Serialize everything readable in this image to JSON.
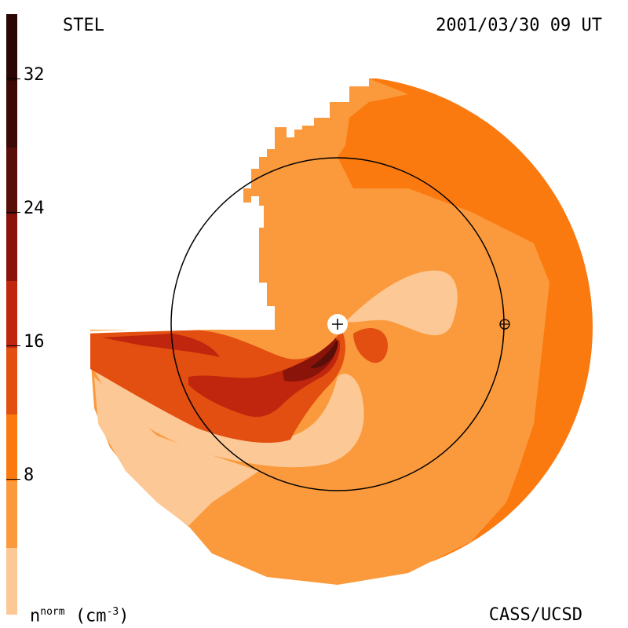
{
  "header": {
    "source_label": "STEL",
    "timestamp": "2001/03/30 09 UT"
  },
  "footer": {
    "credit": "CASS/UCSD",
    "unit_base": "n",
    "unit_sup": "norm",
    "unit_rest": "(cm",
    "unit_exp": "-3",
    "unit_close": ")"
  },
  "colorbar": {
    "tick_labels": [
      "32",
      "24",
      "16",
      "8"
    ],
    "colors": [
      "#2a0604",
      "#5a0e08",
      "#8a130a",
      "#c0260e",
      "#e24f10",
      "#fb7a10",
      "#fb9a3c",
      "#fcc896"
    ]
  },
  "map": {
    "center_marker": "+",
    "earth_marker": "⊕",
    "palette": {
      "base": "#fb9a3c",
      "outer": "#fb7a10",
      "light": "#fcc896",
      "mid": "#e24f10",
      "dark": "#c0260e",
      "darker": "#8a130a"
    }
  }
}
